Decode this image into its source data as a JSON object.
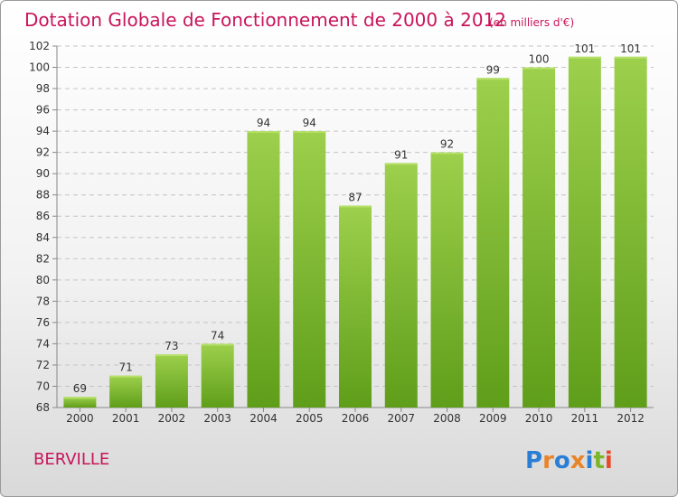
{
  "chart_data": {
    "type": "bar",
    "title": "Dotation Globale de Fonctionnement de 2000 à 2012",
    "subtitle": "(en milliers d'€)",
    "categories": [
      "2000",
      "2001",
      "2002",
      "2003",
      "2004",
      "2005",
      "2006",
      "2007",
      "2008",
      "2009",
      "2010",
      "2011",
      "2012"
    ],
    "values": [
      69,
      71,
      73,
      74,
      94,
      94,
      87,
      91,
      92,
      99,
      100,
      101,
      101
    ],
    "ylim": [
      68,
      102
    ],
    "yticks": [
      68,
      70,
      72,
      74,
      76,
      78,
      80,
      82,
      84,
      86,
      88,
      90,
      92,
      94,
      96,
      98,
      100,
      102
    ],
    "grid": true,
    "bar_color_top": "#9dd04c",
    "bar_color_bottom": "#5f9e1a"
  },
  "commune": "BERVILLE",
  "logo": {
    "text": "Proxiti",
    "letter_colors": [
      "#2a7fd4",
      "#e8842a",
      "#2a7fd4",
      "#e8842a",
      "#2a7fd4",
      "#7ab52a",
      "#e84a2a"
    ]
  }
}
